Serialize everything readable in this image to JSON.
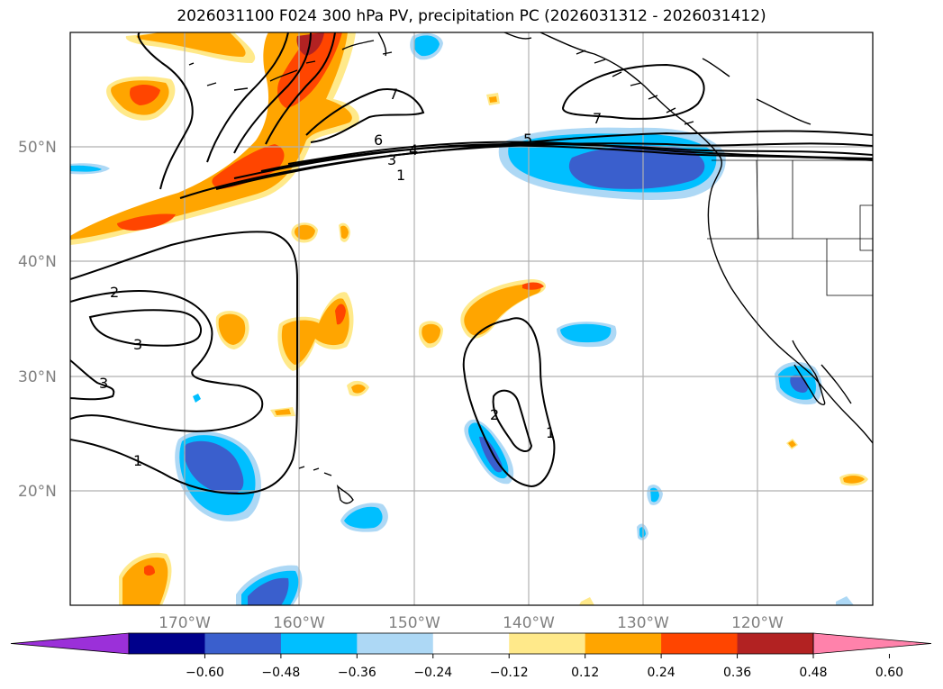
{
  "title": "2026031100 F024 300 hPa PV, precipitation PC (2026031312 - 2026031412)",
  "lat_labels": [
    "50°N",
    "40°N",
    "30°N",
    "20°N"
  ],
  "lon_labels": [
    "170°W",
    "160°W",
    "150°W",
    "140°W",
    "130°W",
    "120°W"
  ],
  "colorbar": {
    "ticks": [
      "−0.60",
      "−0.48",
      "−0.36",
      "−0.24",
      "−0.12",
      "0.12",
      "0.24",
      "0.36",
      "0.48",
      "0.60"
    ],
    "colors": [
      "#9b30d9",
      "#00008b",
      "#3a5fcd",
      "#00bfff",
      "#add8f5",
      "#ffffff",
      "#ffe98a",
      "#ffa500",
      "#ff4500",
      "#b22222",
      "#ff82ab"
    ]
  },
  "contour_labels": [
    "7",
    "6",
    "5",
    "4",
    "3",
    "1",
    "7",
    "2",
    "3",
    "3",
    "1",
    "2",
    "1"
  ],
  "colors": {
    "neg_light": "#add8f5",
    "neg_mid": "#00bfff",
    "neg_strong": "#3a5fcd",
    "pos_light": "#ffe98a",
    "pos_mid": "#ffa500",
    "pos_strong": "#ff4500",
    "pos_darker": "#b22222"
  }
}
